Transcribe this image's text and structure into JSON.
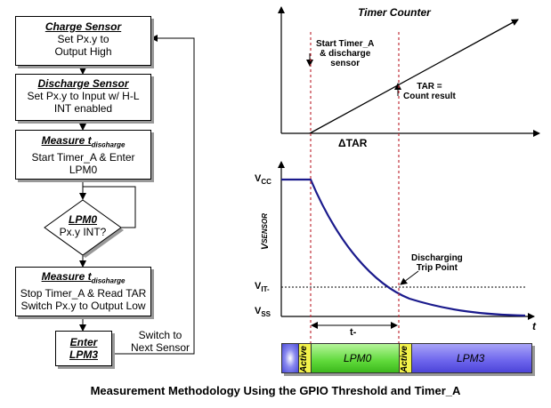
{
  "flowchart": {
    "charge": {
      "title": "Charge Sensor",
      "line1": "Set Px.y to",
      "line2": "Output High"
    },
    "discharge": {
      "title": "Discharge Sensor",
      "line1": "Set Px.y to Input w/ H-L",
      "line2": "INT enabled"
    },
    "measure1": {
      "title": "Measure t",
      "title_sub": "discharge",
      "line1": "Start Timer_A & Enter",
      "line2": "LPM0"
    },
    "decision": {
      "title": "LPM0",
      "line1": "Px.y INT?"
    },
    "measure2": {
      "title": "Measure t",
      "title_sub": "discharge",
      "line1": "Stop Timer_A & Read TAR",
      "line2": "Switch Px.y to Output Low"
    },
    "enter": {
      "line1": "Enter",
      "line2": "LPM3"
    },
    "switch_label": {
      "line1": "Switch to",
      "line2": "Next Sensor"
    }
  },
  "timer_chart": {
    "title": "Timer Counter",
    "start_label": {
      "line1": "Start Timer_A",
      "line2": "& discharge",
      "line3": "sensor"
    },
    "tar_label": {
      "line1": "TAR =",
      "line2": "Count result"
    },
    "delta_label": "ΔTAR"
  },
  "voltage_chart": {
    "vcc": "V",
    "vcc_sub": "CC",
    "vit": "V",
    "vit_sub": "IT-",
    "vss": "V",
    "vss_sub": "SS",
    "ylabel": "V",
    "ylabel_sub": "SENSOR",
    "xlabel": "t",
    "trip": {
      "line1": "Discharging",
      "line2": "Trip Point"
    },
    "t_label": "t-"
  },
  "mode_bar": {
    "active1": "Active",
    "lpm0": "LPM0",
    "active2": "Active",
    "lpm3": "LPM3",
    "colors": {
      "lpm0": "#7de35a",
      "lpm3": "#7b74f0",
      "left": "#6a6ae8"
    }
  },
  "caption": "Measurement Methodology Using the GPIO Threshold and Timer_A"
}
